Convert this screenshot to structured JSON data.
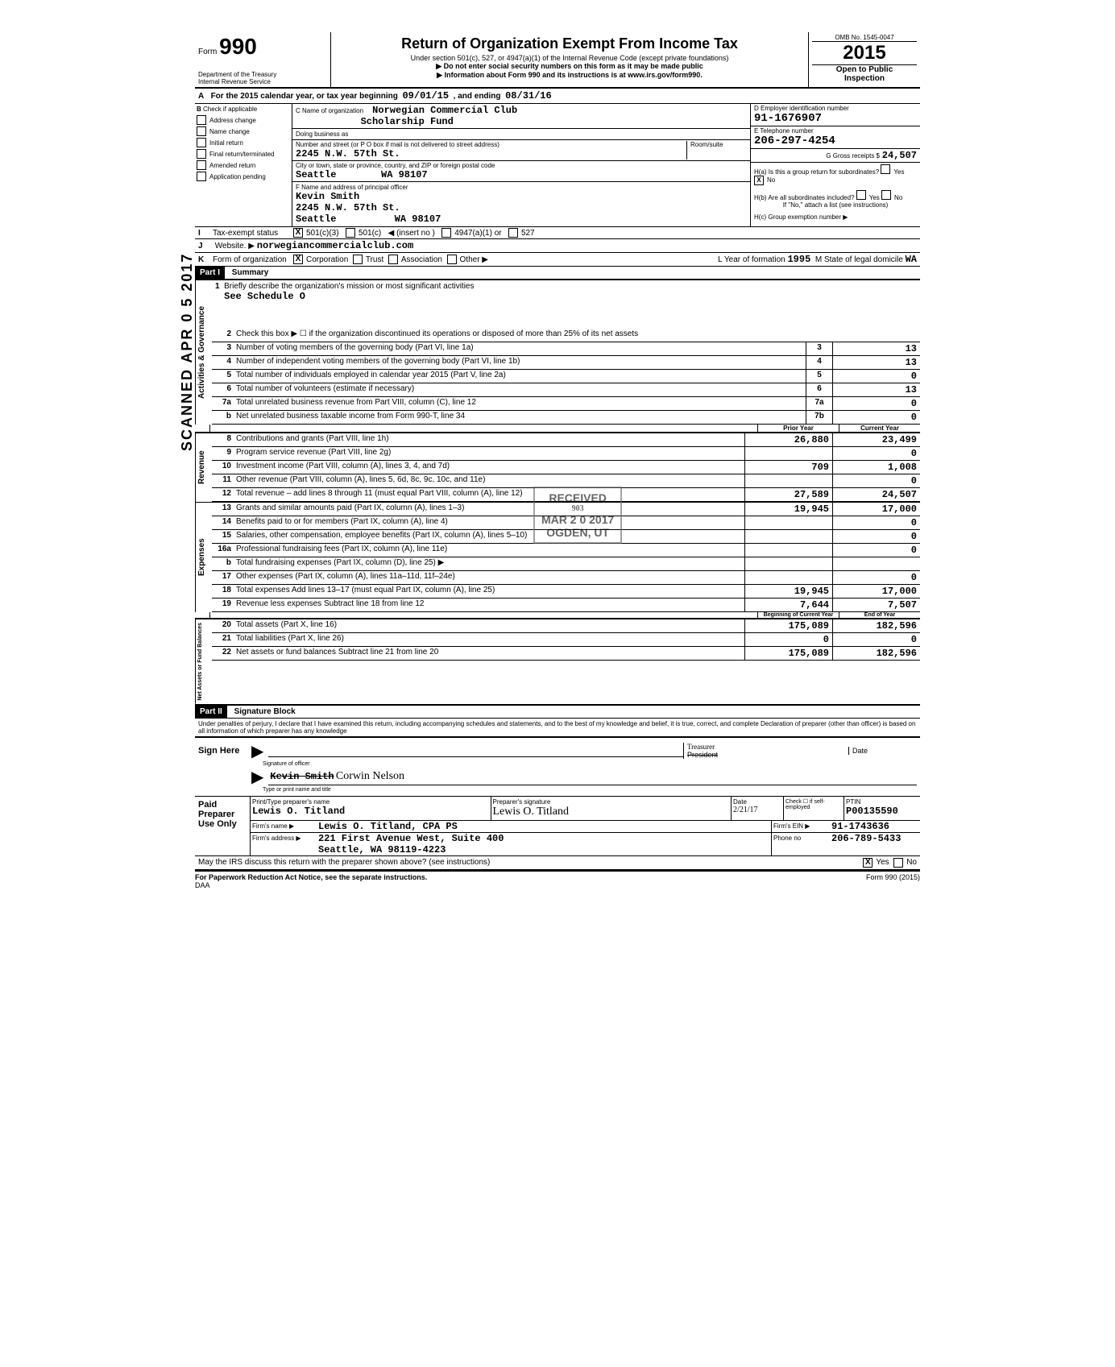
{
  "header": {
    "form_label": "Form",
    "form_number": "990",
    "dept": "Department of the Treasury",
    "irs": "Internal Revenue Service",
    "title": "Return of Organization Exempt From Income Tax",
    "subtitle": "Under section 501(c), 527, or 4947(a)(1) of the Internal Revenue Code (except private foundations)",
    "note1": "▶ Do not enter social security numbers on this form as it may be made public",
    "note2": "▶ Information about Form 990 and its instructions is at www.irs.gov/form990.",
    "omb": "OMB No. 1545-0047",
    "year": "2015",
    "open": "Open to Public",
    "inspection": "Inspection"
  },
  "period": {
    "text_a": "For the 2015 calendar year, or tax year beginning",
    "begin": "09/01/15",
    "text_b": ", and ending",
    "end": "08/31/16"
  },
  "box_b": {
    "label": "Check if applicable",
    "items": [
      "Address change",
      "Name change",
      "Initial return",
      "Final return/terminated",
      "Amended return",
      "Application pending"
    ]
  },
  "box_c": {
    "name_label": "C Name of organization",
    "name1": "Norwegian Commercial Club",
    "name2": "Scholarship Fund",
    "dba_label": "Doing business as",
    "street_label": "Number and street (or P O box if mail is not delivered to street address)",
    "street": "2245 N.W. 57th St.",
    "room_label": "Room/suite",
    "city_label": "City or town, state or province, country, and ZIP or foreign postal code",
    "city": "Seattle",
    "state_zip": "WA  98107",
    "officer_label": "F Name and address of principal officer",
    "officer_name": "Kevin Smith",
    "officer_street": "2245 N.W. 57th St.",
    "officer_city": "Seattle",
    "officer_state_zip": "WA  98107"
  },
  "box_d": {
    "ein_label": "D Employer identification number",
    "ein": "91-1676907",
    "phone_label": "E Telephone number",
    "phone": "206-297-4254",
    "gross_label": "G Gross receipts $",
    "gross": "24,507",
    "ha_label": "H(a) Is this a group return for subordinates?",
    "hb_label": "H(b) Are all subordinates included?",
    "hb_note": "If \"No,\" attach a list (see instructions)",
    "hc_label": "H(c) Group exemption number ▶",
    "yes": "Yes",
    "no": "No"
  },
  "row_i": {
    "label": "Tax-exempt status",
    "opt1": "501(c)(3)",
    "opt2": "501(c)",
    "opt3": "◀ (insert no )",
    "opt4": "4947(a)(1) or",
    "opt5": "527"
  },
  "row_j": {
    "label": "Website. ▶",
    "value": "norwegiancommercialclub.com"
  },
  "row_k": {
    "label": "Form of organization",
    "opt1": "Corporation",
    "opt2": "Trust",
    "opt3": "Association",
    "opt4": "Other ▶",
    "year_label": "L   Year of formation",
    "year": "1995",
    "state_label": "M   State of legal domicile",
    "state": "WA"
  },
  "part1": {
    "label": "Part I",
    "title": "Summary"
  },
  "governance": {
    "label": "Activities & Governance",
    "line1": "Briefly describe the organization's mission or most significant activities",
    "line1_val": "See Schedule O",
    "line2": "Check this box ▶ ☐  if the organization discontinued its operations or disposed of more than 25% of its net assets",
    "line3": "Number of voting members of the governing body (Part VI, line 1a)",
    "line3_val": "13",
    "line4": "Number of independent voting members of the governing body (Part VI, line 1b)",
    "line4_val": "13",
    "line5": "Total number of individuals employed in calendar year 2015 (Part V, line 2a)",
    "line5_val": "0",
    "line6": "Total number of volunteers (estimate if necessary)",
    "line6_val": "13",
    "line7a": "Total unrelated business revenue from Part VIII, column (C), line 12",
    "line7a_val": "0",
    "line7b": "Net unrelated business taxable income from Form 990-T, line 34",
    "line7b_val": "0"
  },
  "columns": {
    "prior": "Prior Year",
    "current": "Current Year",
    "boy": "Beginning of Current Year",
    "eoy": "End of Year"
  },
  "revenue": {
    "label": "Revenue",
    "lines": [
      {
        "n": "8",
        "t": "Contributions and grants (Part VIII, line 1h)",
        "p": "26,880",
        "c": "23,499"
      },
      {
        "n": "9",
        "t": "Program service revenue (Part VIII, line 2g)",
        "p": "",
        "c": "0"
      },
      {
        "n": "10",
        "t": "Investment income (Part VIII, column (A), lines 3, 4, and 7d)",
        "p": "709",
        "c": "1,008"
      },
      {
        "n": "11",
        "t": "Other revenue (Part VIII, column (A), lines 5, 6d, 8c, 9c, 10c, and 11e)",
        "p": "",
        "c": "0"
      },
      {
        "n": "12",
        "t": "Total revenue – add lines 8 through 11 (must equal Part VIII, column (A), line 12)",
        "p": "27,589",
        "c": "24,507"
      }
    ]
  },
  "expenses": {
    "label": "Expenses",
    "lines": [
      {
        "n": "13",
        "t": "Grants and similar amounts paid (Part IX, column (A), lines 1–3)",
        "p": "19,945",
        "c": "17,000"
      },
      {
        "n": "14",
        "t": "Benefits paid to or for members (Part IX, column (A), line 4)",
        "p": "",
        "c": "0"
      },
      {
        "n": "15",
        "t": "Salaries, other compensation, employee benefits (Part IX, column (A), lines 5–10)",
        "p": "",
        "c": "0"
      },
      {
        "n": "16a",
        "t": "Professional fundraising fees (Part IX, column (A), line 11e)",
        "p": "",
        "c": "0"
      },
      {
        "n": "b",
        "t": "Total fundraising expenses (Part IX, column (D), line 25) ▶",
        "p": "",
        "c": ""
      },
      {
        "n": "17",
        "t": "Other expenses (Part IX, column (A), lines 11a–11d, 11f–24e)",
        "p": "",
        "c": "0"
      },
      {
        "n": "18",
        "t": "Total expenses  Add lines 13–17 (must equal Part IX, column (A), line 25)",
        "p": "19,945",
        "c": "17,000"
      },
      {
        "n": "19",
        "t": "Revenue less expenses  Subtract line 18 from line 12",
        "p": "7,644",
        "c": "7,507"
      }
    ]
  },
  "netassets": {
    "label": "Net Assets or Fund Balances",
    "lines": [
      {
        "n": "20",
        "t": "Total assets (Part X, line 16)",
        "p": "175,089",
        "c": "182,596"
      },
      {
        "n": "21",
        "t": "Total liabilities (Part X, line 26)",
        "p": "0",
        "c": "0"
      },
      {
        "n": "22",
        "t": "Net assets or fund balances  Subtract line 21 from line 20",
        "p": "175,089",
        "c": "182,596"
      }
    ]
  },
  "part2": {
    "label": "Part II",
    "title": "Signature Block",
    "declaration": "Under penalties of perjury, I declare that I have examined this return, including accompanying schedules and statements, and to the best of my knowledge and belief, it is true, correct, and complete  Declaration of preparer (other than officer) is based on all information of which preparer has any knowledge"
  },
  "sign": {
    "here": "Sign Here",
    "sig_label": "Signature of officer",
    "name_strike": "Kevin Smith",
    "name_written": "Corwin Nelson",
    "title_written": "Treasurer",
    "title_strike": "President",
    "type_label": "Type or print name and title",
    "date_label": "Date"
  },
  "preparer": {
    "label": "Paid Preparer Use Only",
    "print_label": "Print/Type preparer's name",
    "print_name": "Lewis O. Titland",
    "sig_label": "Preparer's signature",
    "sig_name": "Lewis O. Titland",
    "date": "2/21/17",
    "check_label": "Check ☐ if self-employed",
    "ptin_label": "PTIN",
    "ptin": "P00135590",
    "firm_label": "Firm's name ▶",
    "firm": "Lewis O. Titland, CPA PS",
    "ein_label": "Firm's EIN ▶",
    "ein": "91-1743636",
    "addr_label": "Firm's address ▶",
    "addr1": "221 First Avenue West, Suite 400",
    "addr2": "Seattle, WA  98119-4223",
    "phone_label": "Phone no",
    "phone": "206-789-5433"
  },
  "footer": {
    "discuss": "May the IRS discuss this return with the preparer shown above? (see instructions)",
    "yes": "Yes",
    "no": "No",
    "paperwork": "For Paperwork Reduction Act Notice, see the separate instructions.",
    "daa": "DAA",
    "form": "Form 990 (2015)"
  },
  "stamps": {
    "scanned": "SCANNED APR 0 5 2017",
    "received": "RECEIVED",
    "received_date": "MAR 2 0 2017",
    "received_loc": "OGDEN, UT"
  }
}
